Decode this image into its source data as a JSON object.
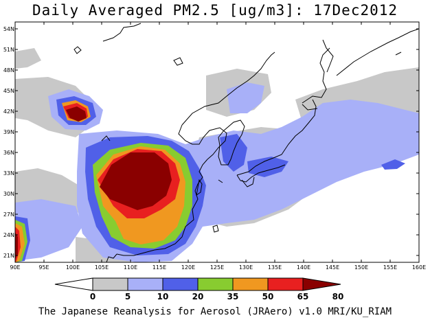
{
  "title": "Daily Averaged PM2.5 [ug/m3]: 17Dec2012",
  "credit": "The Japanese Reanalysis for Aerosol (JRAero) v1.0 MRI/KU_RIAM",
  "map": {
    "lon_range": [
      90,
      160
    ],
    "lat_range": [
      20,
      55
    ],
    "lon_ticks": [
      "90E",
      "95E",
      "100E",
      "105E",
      "110E",
      "115E",
      "120E",
      "125E",
      "130E",
      "135E",
      "140E",
      "145E",
      "150E",
      "155E",
      "160E"
    ],
    "lat_ticks": [
      "21N",
      "24N",
      "27N",
      "30N",
      "33N",
      "36N",
      "39N",
      "42N",
      "45N",
      "48N",
      "51N",
      "54N"
    ]
  },
  "colorbar": {
    "labels": [
      "0",
      "5",
      "10",
      "20",
      "35",
      "50",
      "65",
      "80"
    ],
    "colors": [
      "#ffffff",
      "#c8c8c8",
      "#a8b0f8",
      "#5060e8",
      "#88cc30",
      "#f09820",
      "#e82020",
      "#8a0000"
    ]
  }
}
